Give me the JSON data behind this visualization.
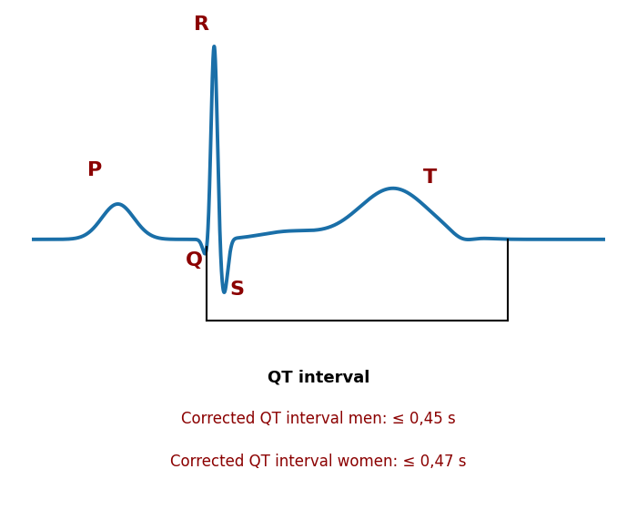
{
  "bg_color": "#ffffff",
  "ecg_color": "#1a6fa8",
  "label_color": "#8b0000",
  "line_width": 2.8,
  "label_fontsize": 16,
  "annotation_fontsize": 12,
  "qt_label_fontsize": 13,
  "qt_interval_label": "QT interval",
  "men_label": "Corrected QT interval men: ≤ 0,45 s",
  "women_label": "Corrected QT interval women: ≤ 0,47 s"
}
